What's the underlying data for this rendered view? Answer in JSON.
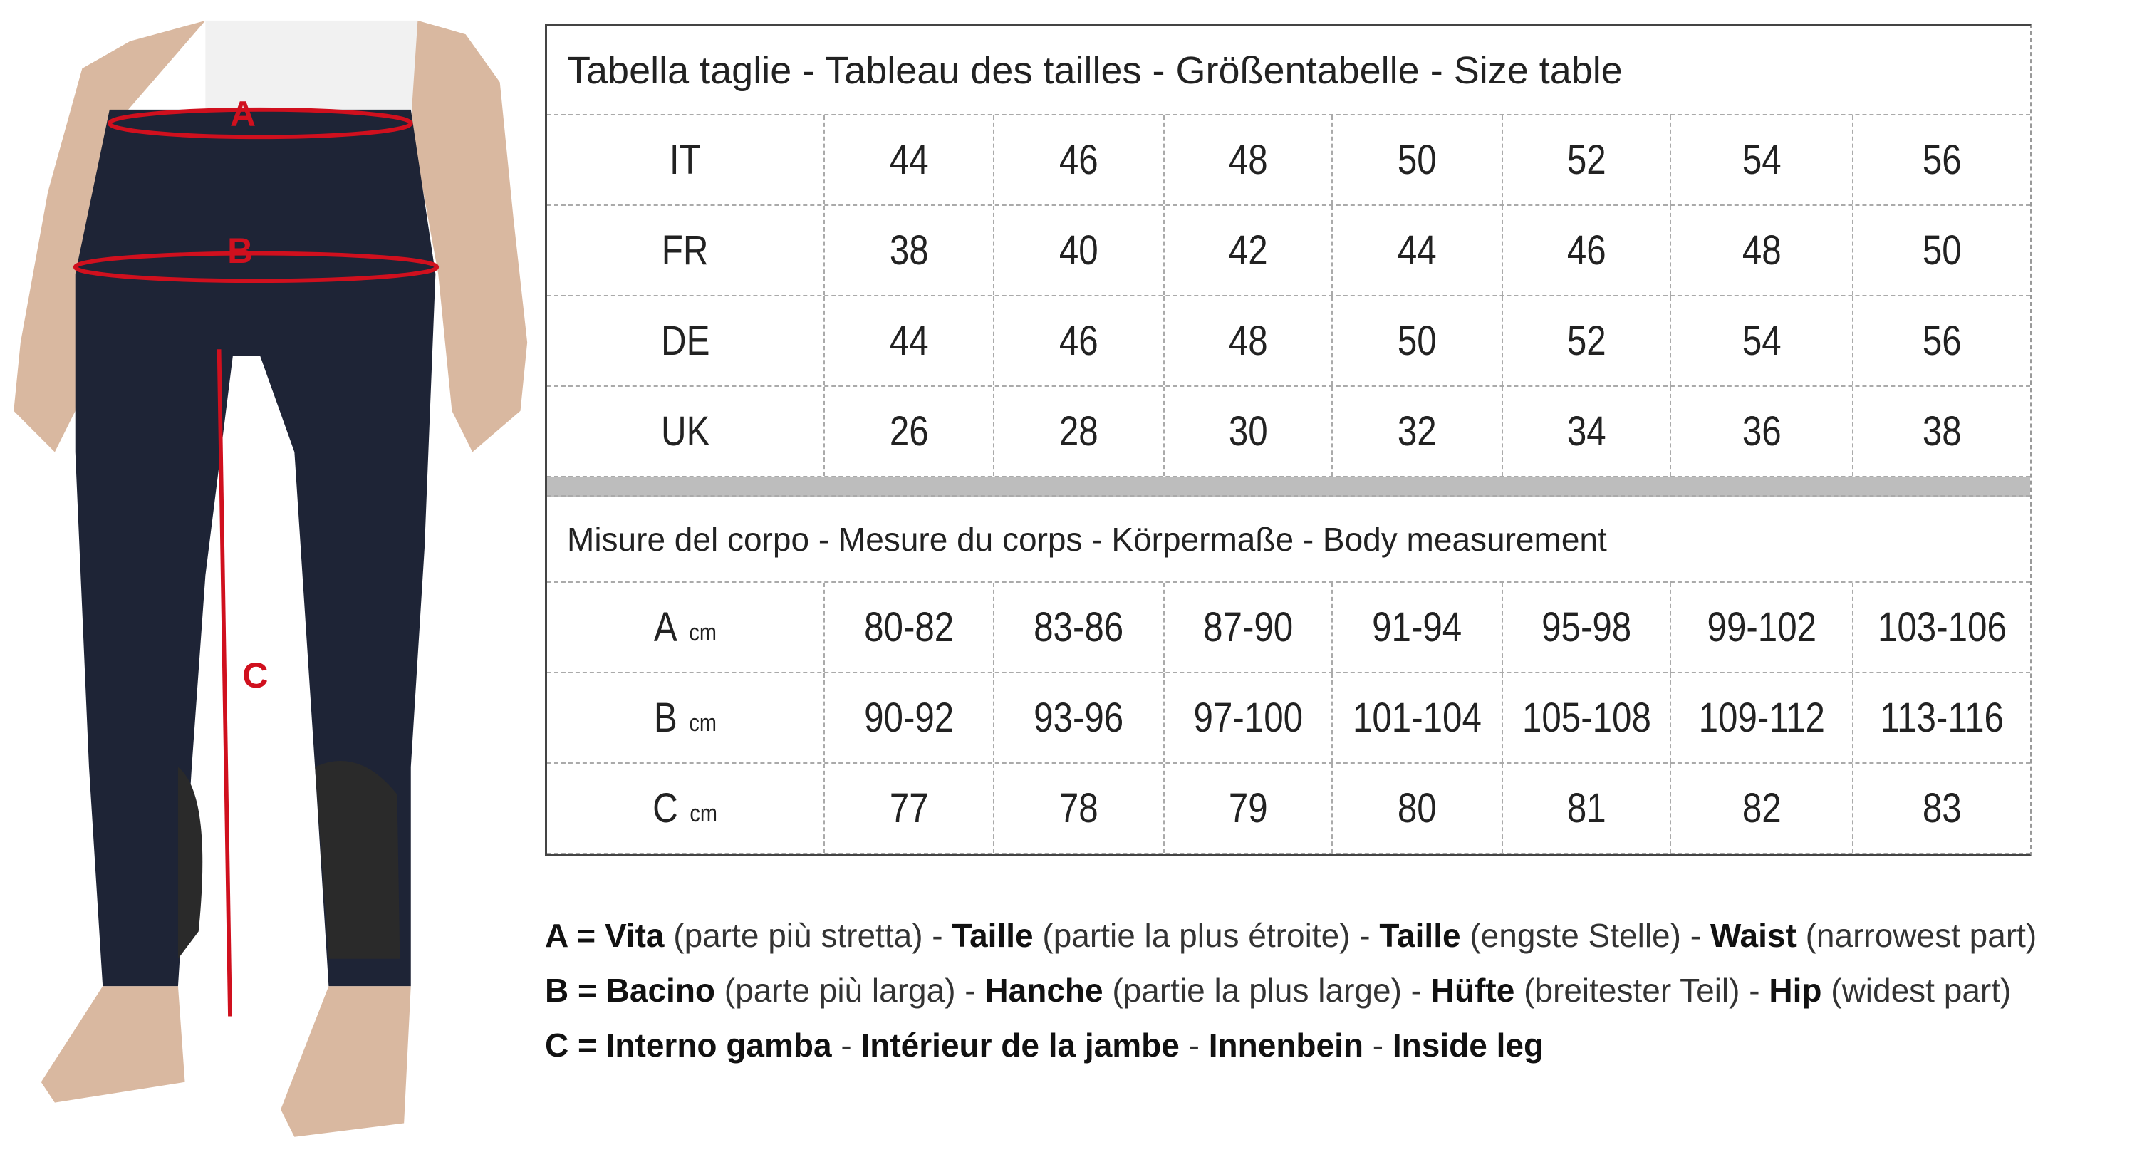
{
  "figure": {
    "labels": [
      "A",
      "B",
      "C"
    ],
    "line_color": "#d0101e",
    "pants_color": "#1e2436"
  },
  "table": {
    "title": "Tabella taglie - Tableau des tailles - Größentabelle - Size table",
    "size_rows": [
      {
        "label": "IT",
        "values": [
          "44",
          "46",
          "48",
          "50",
          "52",
          "54",
          "56"
        ]
      },
      {
        "label": "FR",
        "values": [
          "38",
          "40",
          "42",
          "44",
          "46",
          "48",
          "50"
        ]
      },
      {
        "label": "DE",
        "values": [
          "44",
          "46",
          "48",
          "50",
          "52",
          "54",
          "56"
        ]
      },
      {
        "label": "UK",
        "values": [
          "26",
          "28",
          "30",
          "32",
          "34",
          "36",
          "38"
        ]
      }
    ],
    "section_title": "Misure del corpo - Mesure du corps - Körpermaße - Body measurement",
    "measure_rows": [
      {
        "label": "A",
        "unit": "cm",
        "values": [
          "80-82",
          "83-86",
          "87-90",
          "91-94",
          "95-98",
          "99-102",
          "103-106"
        ]
      },
      {
        "label": "B",
        "unit": "cm",
        "values": [
          "90-92",
          "93-96",
          "97-100",
          "101-104",
          "105-108",
          "109-112",
          "113-116"
        ]
      },
      {
        "label": "C",
        "unit": "cm",
        "values": [
          "77",
          "78",
          "79",
          "80",
          "81",
          "82",
          "83"
        ]
      }
    ]
  },
  "legend": [
    {
      "key": "A =",
      "parts": [
        [
          "Vita",
          " (parte più stretta) - "
        ],
        [
          "Taille",
          " (partie la plus étroite) - "
        ],
        [
          "Taille",
          " (engste Stelle) - "
        ],
        [
          "Waist",
          " (narrowest part)"
        ]
      ]
    },
    {
      "key": "B =",
      "parts": [
        [
          "Bacino",
          " (parte più larga) - "
        ],
        [
          "Hanche",
          " (partie la plus large) - "
        ],
        [
          "Hüfte",
          " (breitester Teil) - "
        ],
        [
          "Hip",
          " (widest part)"
        ]
      ]
    },
    {
      "key": "C =",
      "parts": [
        [
          "Interno gamba",
          " - "
        ],
        [
          "Intérieur de la jambe",
          " - "
        ],
        [
          "Innenbein",
          " - "
        ],
        [
          "Inside leg",
          ""
        ]
      ]
    }
  ]
}
